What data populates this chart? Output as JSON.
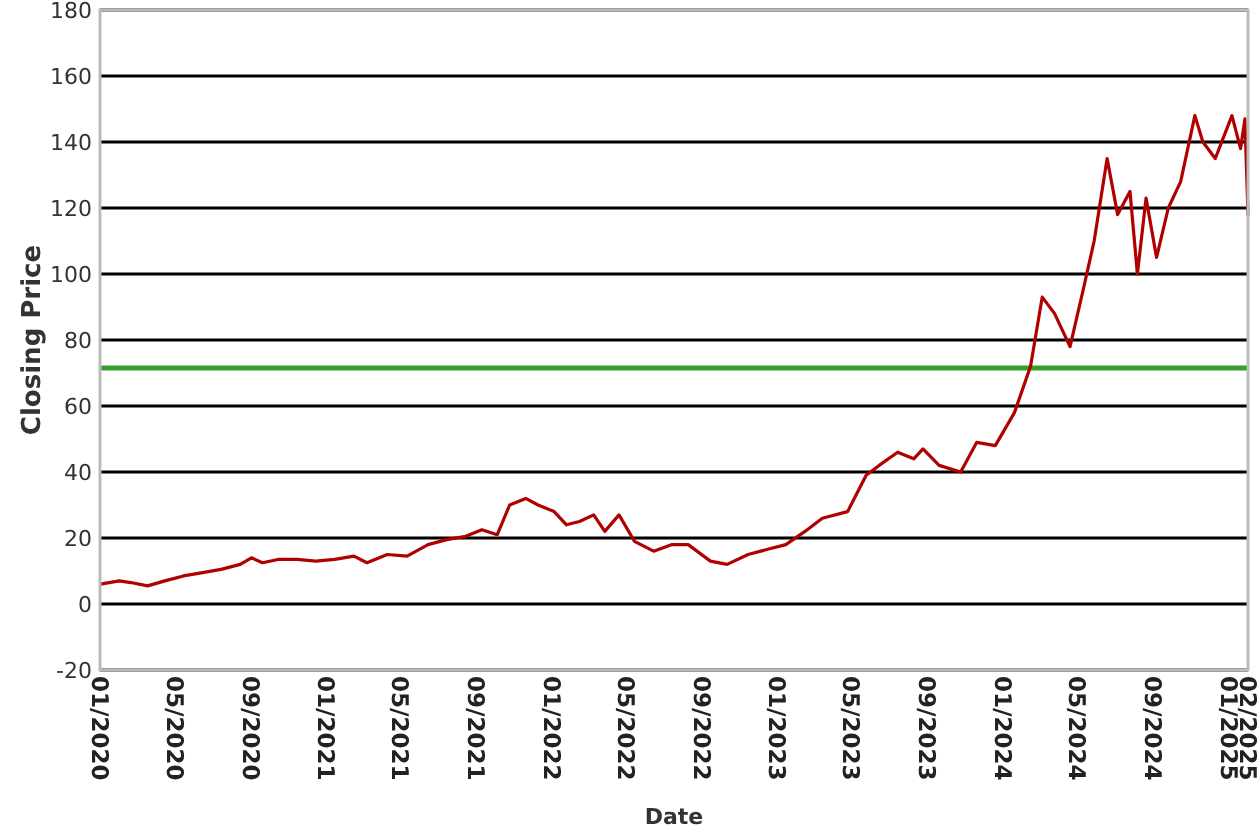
{
  "chart_data": {
    "type": "line",
    "xlabel": "Date",
    "ylabel": "Closing Price",
    "x": [
      "2020-01-02",
      "2020-02-01",
      "2020-02-20",
      "2020-03-18",
      "2020-04-15",
      "2020-05-15",
      "2020-06-15",
      "2020-07-15",
      "2020-08-15",
      "2020-09-02",
      "2020-09-20",
      "2020-10-15",
      "2020-11-15",
      "2020-12-15",
      "2021-01-15",
      "2021-02-15",
      "2021-03-08",
      "2021-04-10",
      "2021-05-12",
      "2021-06-15",
      "2021-07-15",
      "2021-08-15",
      "2021-09-10",
      "2021-10-05",
      "2021-10-25",
      "2021-11-20",
      "2021-12-10",
      "2022-01-05",
      "2022-01-25",
      "2022-02-15",
      "2022-03-10",
      "2022-03-28",
      "2022-04-20",
      "2022-05-15",
      "2022-06-15",
      "2022-07-15",
      "2022-08-10",
      "2022-09-15",
      "2022-10-12",
      "2022-11-15",
      "2022-12-15",
      "2023-01-15",
      "2023-02-15",
      "2023-03-15",
      "2023-04-25",
      "2023-05-25",
      "2023-06-15",
      "2023-07-15",
      "2023-08-10",
      "2023-08-25",
      "2023-09-20",
      "2023-10-25",
      "2023-11-20",
      "2023-12-20",
      "2024-01-20",
      "2024-02-15",
      "2024-03-05",
      "2024-03-25",
      "2024-04-19",
      "2024-05-10",
      "2024-05-28",
      "2024-06-18",
      "2024-07-05",
      "2024-07-25",
      "2024-08-06",
      "2024-08-20",
      "2024-09-06",
      "2024-09-25",
      "2024-10-15",
      "2024-11-07",
      "2024-11-20",
      "2024-12-10",
      "2025-01-06",
      "2025-01-20",
      "2025-01-27",
      "2025-02-01"
    ],
    "series": [
      {
        "color": "#b00000",
        "values": [
          6,
          7,
          6.5,
          5.5,
          7,
          8.5,
          9.5,
          10.5,
          12,
          14,
          12.5,
          13.5,
          13.5,
          13,
          13.5,
          14.5,
          12.5,
          15,
          14.5,
          18,
          19.5,
          20.5,
          22.5,
          21,
          30,
          32,
          30,
          28,
          24,
          25,
          27,
          22,
          27,
          19,
          16,
          18,
          18,
          13,
          12,
          15,
          16.5,
          18,
          22,
          26,
          28,
          39,
          42,
          46,
          44,
          47,
          42,
          40,
          49,
          48,
          58,
          72,
          93,
          88,
          78,
          95,
          110,
          135,
          118,
          125,
          100,
          123,
          105,
          120,
          128,
          148,
          140,
          135,
          148,
          138,
          147,
          118
        ]
      }
    ],
    "xlim": [
      "2020-01-01",
      "2025-02-01"
    ],
    "xticks": [
      {
        "value": "2020-01-01",
        "label": "01/2020"
      },
      {
        "value": "2020-05-01",
        "label": "05/2020"
      },
      {
        "value": "2020-09-01",
        "label": "09/2020"
      },
      {
        "value": "2021-01-01",
        "label": "01/2021"
      },
      {
        "value": "2021-05-01",
        "label": "05/2021"
      },
      {
        "value": "2021-09-01",
        "label": "09/2021"
      },
      {
        "value": "2022-01-01",
        "label": "01/2022"
      },
      {
        "value": "2022-05-01",
        "label": "05/2022"
      },
      {
        "value": "2022-09-01",
        "label": "09/2022"
      },
      {
        "value": "2023-01-01",
        "label": "01/2023"
      },
      {
        "value": "2023-05-01",
        "label": "05/2023"
      },
      {
        "value": "2023-09-01",
        "label": "09/2023"
      },
      {
        "value": "2024-01-01",
        "label": "01/2024"
      },
      {
        "value": "2024-05-01",
        "label": "05/2024"
      },
      {
        "value": "2024-09-01",
        "label": "09/2024"
      },
      {
        "value": "2025-01-01",
        "label": "01/2025"
      },
      {
        "value": "2025-02-01",
        "label": "02/2025"
      }
    ],
    "ylim": [
      -20,
      180
    ],
    "yticks": [
      -20,
      0,
      20,
      40,
      60,
      80,
      100,
      120,
      140,
      160,
      180
    ],
    "grid": "y",
    "ref_lines": [
      {
        "axis": "y",
        "value": 71.5,
        "color": "#33a02c"
      }
    ]
  }
}
